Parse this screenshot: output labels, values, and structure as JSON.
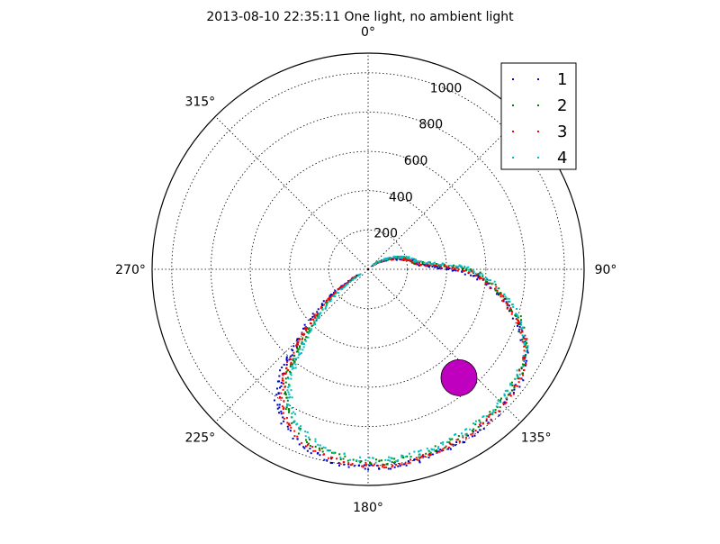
{
  "chart_data": {
    "type": "scatter",
    "projection": "polar",
    "title": "2013-08-10 22:35:11 One light, no ambient light",
    "theta_zero": "top",
    "theta_direction": "clockwise",
    "angular_ticks": [
      {
        "deg": 0,
        "label": "0°"
      },
      {
        "deg": 45,
        "label": ""
      },
      {
        "deg": 90,
        "label": "90°"
      },
      {
        "deg": 135,
        "label": "135°"
      },
      {
        "deg": 180,
        "label": "180°"
      },
      {
        "deg": 225,
        "label": "225°"
      },
      {
        "deg": 270,
        "label": "270°"
      },
      {
        "deg": 315,
        "label": "315°"
      }
    ],
    "radial_ticks": [
      {
        "value": 200,
        "label": "200"
      },
      {
        "value": 400,
        "label": "400"
      },
      {
        "value": 600,
        "label": "600"
      },
      {
        "value": 800,
        "label": "800"
      },
      {
        "value": 1000,
        "label": "1000"
      }
    ],
    "rlim": [
      0,
      1100
    ],
    "grid": true,
    "legend_position": "top-right",
    "series": [
      {
        "name": "1",
        "color": "#0000bf"
      },
      {
        "name": "2",
        "color": "#008000"
      },
      {
        "name": "3",
        "color": "#ff0000"
      },
      {
        "name": "4",
        "color": "#00bfbf"
      }
    ],
    "light": {
      "theta": 140,
      "r": 720,
      "color": "#bf00bf"
    },
    "series_path_common": [
      [
        53,
        40
      ],
      [
        60,
        80
      ],
      [
        65,
        120
      ],
      [
        70,
        160
      ],
      [
        75,
        195
      ],
      [
        80,
        230
      ],
      [
        85,
        260
      ],
      [
        88,
        340
      ],
      [
        90,
        420
      ],
      [
        92,
        500
      ],
      [
        95,
        580
      ],
      [
        100,
        660
      ],
      [
        105,
        740
      ],
      [
        110,
        820
      ],
      [
        115,
        880
      ],
      [
        120,
        930
      ],
      [
        128,
        965
      ],
      [
        135,
        980
      ],
      [
        142,
        990
      ],
      [
        150,
        995
      ],
      [
        158,
        1000
      ],
      [
        165,
        1005
      ],
      [
        172,
        1008
      ],
      [
        178,
        1010
      ],
      [
        185,
        1005
      ],
      [
        192,
        990
      ],
      [
        200,
        960
      ],
      [
        208,
        900
      ],
      [
        213,
        840
      ],
      [
        217,
        760
      ],
      [
        220,
        680
      ],
      [
        222,
        600
      ],
      [
        224,
        520
      ],
      [
        227,
        440
      ],
      [
        230,
        360
      ],
      [
        233,
        280
      ],
      [
        236,
        200
      ],
      [
        238,
        130
      ],
      [
        241,
        60
      ]
    ]
  }
}
